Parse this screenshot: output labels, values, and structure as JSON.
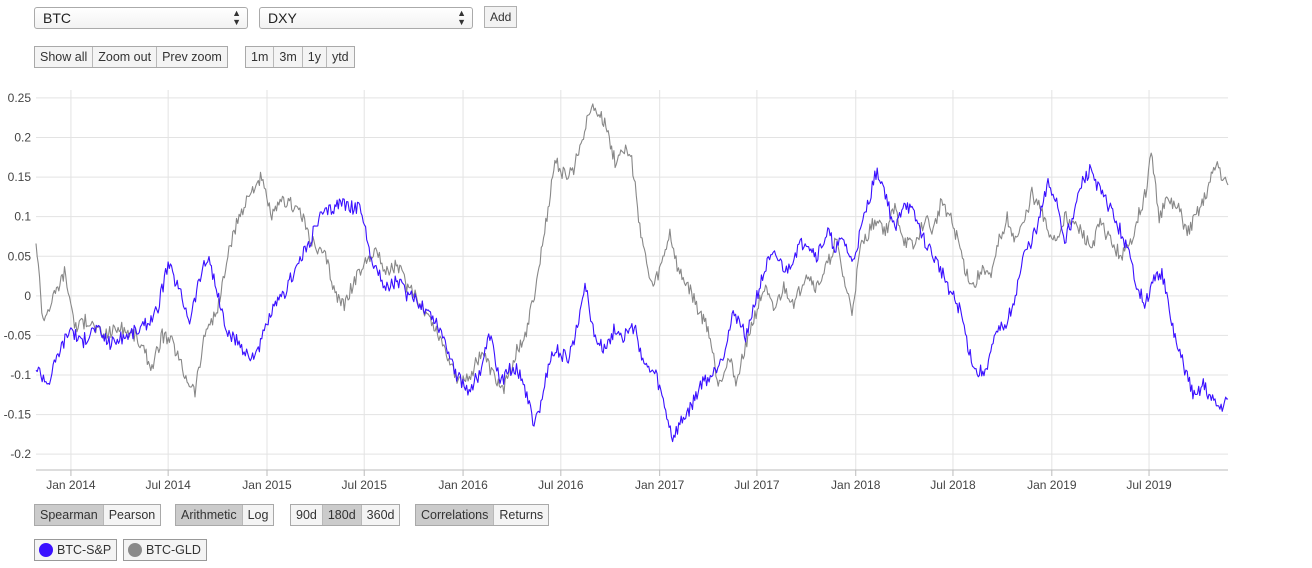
{
  "selects": {
    "asset_a": "BTC",
    "asset_b": "DXY",
    "add_label": "Add"
  },
  "zoom_controls": {
    "show_all": "Show all",
    "zoom_out": "Zoom out",
    "prev_zoom": "Prev zoom"
  },
  "range_controls": [
    "1m",
    "3m",
    "1y",
    "ytd"
  ],
  "method_controls": {
    "options": [
      "Spearman",
      "Pearson"
    ],
    "active": "Spearman"
  },
  "scale_controls": {
    "options": [
      "Arithmetic",
      "Log"
    ],
    "active": "Arithmetic"
  },
  "window_controls": {
    "options": [
      "90d",
      "180d",
      "360d"
    ],
    "active": "180d"
  },
  "view_controls": {
    "options": [
      "Correlations",
      "Returns"
    ],
    "active": "Correlations"
  },
  "legend": [
    {
      "name": "BTC-S&P",
      "color": "#3a10ff"
    },
    {
      "name": "BTC-GLD",
      "color": "#888888"
    }
  ],
  "chart_data": {
    "type": "line",
    "ylim": [
      -0.22,
      0.26
    ],
    "y_ticks": [
      -0.2,
      -0.15,
      -0.1,
      -0.05,
      0,
      0.05,
      0.1,
      0.15,
      0.2,
      0.25
    ],
    "y_tick_labels": [
      "-0.2",
      "-0.15",
      "-0.1",
      "-0.05",
      "0",
      "0.05",
      "0.1",
      "0.15",
      "0.2",
      "0.25"
    ],
    "x_range": [
      "2013-10-28",
      "2019-11-25"
    ],
    "x_ticks": [
      "2014-01-01",
      "2014-07-01",
      "2015-01-01",
      "2015-07-01",
      "2016-01-01",
      "2016-07-01",
      "2017-01-01",
      "2017-07-01",
      "2018-01-01",
      "2018-07-01",
      "2019-01-01",
      "2019-07-01"
    ],
    "x_tick_labels": [
      "Jan 2014",
      "Jul 2014",
      "Jan 2015",
      "Jul 2015",
      "Jan 2016",
      "Jul 2016",
      "Jan 2017",
      "Jul 2017",
      "Jan 2018",
      "Jul 2018",
      "Jan 2019",
      "Jul 2019"
    ],
    "grid": true,
    "series": [
      {
        "name": "BTC-S&P",
        "color": "#3a10ff",
        "points": [
          [
            "2013-10-28",
            -0.09
          ],
          [
            "2013-11-20",
            -0.11
          ],
          [
            "2013-12-10",
            -0.07
          ],
          [
            "2014-01-01",
            -0.04
          ],
          [
            "2014-01-20",
            -0.06
          ],
          [
            "2014-02-15",
            -0.04
          ],
          [
            "2014-03-15",
            -0.06
          ],
          [
            "2014-04-15",
            -0.05
          ],
          [
            "2014-05-15",
            -0.04
          ],
          [
            "2014-06-10",
            -0.02
          ],
          [
            "2014-07-01",
            0.04
          ],
          [
            "2014-07-20",
            0.01
          ],
          [
            "2014-08-10",
            -0.03
          ],
          [
            "2014-09-01",
            0.03
          ],
          [
            "2014-09-15",
            0.05
          ],
          [
            "2014-10-01",
            0.0
          ],
          [
            "2014-10-20",
            -0.05
          ],
          [
            "2014-11-10",
            -0.06
          ],
          [
            "2014-12-01",
            -0.08
          ],
          [
            "2014-12-20",
            -0.06
          ],
          [
            "2015-01-10",
            -0.02
          ],
          [
            "2015-02-01",
            0.0
          ],
          [
            "2015-02-20",
            0.03
          ],
          [
            "2015-03-15",
            0.06
          ],
          [
            "2015-04-10",
            0.1
          ],
          [
            "2015-05-01",
            0.11
          ],
          [
            "2015-05-20",
            0.12
          ],
          [
            "2015-06-10",
            0.11
          ],
          [
            "2015-06-25",
            0.11
          ],
          [
            "2015-07-10",
            0.06
          ],
          [
            "2015-07-25",
            0.03
          ],
          [
            "2015-08-10",
            0.01
          ],
          [
            "2015-09-01",
            0.02
          ],
          [
            "2015-09-20",
            0.0
          ],
          [
            "2015-10-15",
            -0.01
          ],
          [
            "2015-11-10",
            -0.03
          ],
          [
            "2015-12-01",
            -0.06
          ],
          [
            "2015-12-20",
            -0.1
          ],
          [
            "2016-01-10",
            -0.12
          ],
          [
            "2016-01-31",
            -0.1
          ],
          [
            "2016-02-20",
            -0.05
          ],
          [
            "2016-03-10",
            -0.11
          ],
          [
            "2016-04-01",
            -0.09
          ],
          [
            "2016-04-20",
            -0.1
          ],
          [
            "2016-05-10",
            -0.16
          ],
          [
            "2016-05-25",
            -0.14
          ],
          [
            "2016-06-10",
            -0.08
          ],
          [
            "2016-06-25",
            -0.07
          ],
          [
            "2016-07-15",
            -0.08
          ],
          [
            "2016-08-01",
            -0.04
          ],
          [
            "2016-08-15",
            0.02
          ],
          [
            "2016-09-01",
            -0.05
          ],
          [
            "2016-09-20",
            -0.07
          ],
          [
            "2016-10-10",
            -0.04
          ],
          [
            "2016-10-25",
            -0.05
          ],
          [
            "2016-11-15",
            -0.04
          ],
          [
            "2016-12-05",
            -0.09
          ],
          [
            "2016-12-25",
            -0.1
          ],
          [
            "2017-01-10",
            -0.14
          ],
          [
            "2017-01-25",
            -0.18
          ],
          [
            "2017-02-10",
            -0.16
          ],
          [
            "2017-03-01",
            -0.14
          ],
          [
            "2017-03-20",
            -0.11
          ],
          [
            "2017-04-10",
            -0.1
          ],
          [
            "2017-05-01",
            -0.07
          ],
          [
            "2017-05-20",
            -0.02
          ],
          [
            "2017-06-10",
            -0.05
          ],
          [
            "2017-07-01",
            0.0
          ],
          [
            "2017-07-20",
            0.04
          ],
          [
            "2017-08-05",
            0.05
          ],
          [
            "2017-08-25",
            0.03
          ],
          [
            "2017-09-15",
            0.06
          ],
          [
            "2017-10-01",
            0.07
          ],
          [
            "2017-10-20",
            0.05
          ],
          [
            "2017-11-10",
            0.08
          ],
          [
            "2017-11-25",
            0.06
          ],
          [
            "2017-12-10",
            0.07
          ],
          [
            "2017-12-25",
            0.04
          ],
          [
            "2018-01-10",
            0.08
          ],
          [
            "2018-01-25",
            0.12
          ],
          [
            "2018-02-10",
            0.16
          ],
          [
            "2018-02-25",
            0.13
          ],
          [
            "2018-03-15",
            0.08
          ],
          [
            "2018-04-01",
            0.12
          ],
          [
            "2018-04-20",
            0.1
          ],
          [
            "2018-05-10",
            0.07
          ],
          [
            "2018-05-25",
            0.05
          ],
          [
            "2018-06-10",
            0.03
          ],
          [
            "2018-06-30",
            0.0
          ],
          [
            "2018-07-15",
            -0.02
          ],
          [
            "2018-07-31",
            -0.07
          ],
          [
            "2018-08-15",
            -0.1
          ],
          [
            "2018-09-01",
            -0.09
          ],
          [
            "2018-09-20",
            -0.05
          ],
          [
            "2018-10-10",
            -0.03
          ],
          [
            "2018-10-25",
            0.0
          ],
          [
            "2018-11-10",
            0.05
          ],
          [
            "2018-11-25",
            0.07
          ],
          [
            "2018-12-10",
            0.1
          ],
          [
            "2018-12-25",
            0.14
          ],
          [
            "2019-01-10",
            0.12
          ],
          [
            "2019-01-25",
            0.07
          ],
          [
            "2019-02-10",
            0.1
          ],
          [
            "2019-02-25",
            0.14
          ],
          [
            "2019-03-15",
            0.16
          ],
          [
            "2019-04-01",
            0.13
          ],
          [
            "2019-04-20",
            0.11
          ],
          [
            "2019-05-10",
            0.08
          ],
          [
            "2019-05-25",
            0.05
          ],
          [
            "2019-06-10",
            0.01
          ],
          [
            "2019-06-25",
            -0.01
          ],
          [
            "2019-07-10",
            0.02
          ],
          [
            "2019-07-25",
            0.03
          ],
          [
            "2019-08-10",
            -0.03
          ],
          [
            "2019-08-25",
            -0.07
          ],
          [
            "2019-09-10",
            -0.1
          ],
          [
            "2019-09-25",
            -0.13
          ],
          [
            "2019-10-10",
            -0.11
          ],
          [
            "2019-10-25",
            -0.13
          ],
          [
            "2019-11-10",
            -0.14
          ],
          [
            "2019-11-25",
            -0.13
          ]
        ]
      },
      {
        "name": "BTC-GLD",
        "color": "#888888",
        "points": [
          [
            "2013-10-28",
            0.07
          ],
          [
            "2013-11-10",
            -0.03
          ],
          [
            "2013-12-01",
            0.0
          ],
          [
            "2013-12-20",
            0.03
          ],
          [
            "2014-01-10",
            -0.04
          ],
          [
            "2014-02-01",
            -0.03
          ],
          [
            "2014-03-01",
            -0.05
          ],
          [
            "2014-04-01",
            -0.04
          ],
          [
            "2014-05-01",
            -0.05
          ],
          [
            "2014-06-01",
            -0.09
          ],
          [
            "2014-06-20",
            -0.05
          ],
          [
            "2014-07-10",
            -0.06
          ],
          [
            "2014-08-01",
            -0.1
          ],
          [
            "2014-08-20",
            -0.12
          ],
          [
            "2014-09-10",
            -0.04
          ],
          [
            "2014-10-01",
            -0.02
          ],
          [
            "2014-10-20",
            0.05
          ],
          [
            "2014-11-10",
            0.1
          ],
          [
            "2014-12-01",
            0.13
          ],
          [
            "2014-12-20",
            0.15
          ],
          [
            "2015-01-10",
            0.1
          ],
          [
            "2015-02-01",
            0.12
          ],
          [
            "2015-03-01",
            0.11
          ],
          [
            "2015-04-01",
            0.06
          ],
          [
            "2015-04-20",
            0.05
          ],
          [
            "2015-05-10",
            0.0
          ],
          [
            "2015-05-25",
            -0.01
          ],
          [
            "2015-06-15",
            0.02
          ],
          [
            "2015-07-01",
            0.04
          ],
          [
            "2015-07-20",
            0.06
          ],
          [
            "2015-08-10",
            0.03
          ],
          [
            "2015-09-01",
            0.04
          ],
          [
            "2015-09-20",
            0.01
          ],
          [
            "2015-10-15",
            -0.01
          ],
          [
            "2015-11-10",
            -0.04
          ],
          [
            "2015-12-01",
            -0.07
          ],
          [
            "2015-12-25",
            -0.11
          ],
          [
            "2016-01-15",
            -0.1
          ],
          [
            "2016-02-05",
            -0.07
          ],
          [
            "2016-02-25",
            -0.1
          ],
          [
            "2016-03-15",
            -0.12
          ],
          [
            "2016-04-10",
            -0.07
          ],
          [
            "2016-04-30",
            -0.04
          ],
          [
            "2016-05-15",
            0.01
          ],
          [
            "2016-06-01",
            0.08
          ],
          [
            "2016-06-20",
            0.17
          ],
          [
            "2016-07-10",
            0.15
          ],
          [
            "2016-07-25",
            0.16
          ],
          [
            "2016-08-10",
            0.2
          ],
          [
            "2016-08-25",
            0.24
          ],
          [
            "2016-09-10",
            0.23
          ],
          [
            "2016-09-25",
            0.21
          ],
          [
            "2016-10-10",
            0.17
          ],
          [
            "2016-10-25",
            0.19
          ],
          [
            "2016-11-10",
            0.17
          ],
          [
            "2016-11-25",
            0.09
          ],
          [
            "2016-12-10",
            0.03
          ],
          [
            "2016-12-20",
            0.01
          ],
          [
            "2017-01-05",
            0.04
          ],
          [
            "2017-01-20",
            0.08
          ],
          [
            "2017-02-05",
            0.03
          ],
          [
            "2017-02-25",
            0.01
          ],
          [
            "2017-03-15",
            -0.02
          ],
          [
            "2017-04-01",
            -0.04
          ],
          [
            "2017-04-20",
            -0.11
          ],
          [
            "2017-05-10",
            -0.08
          ],
          [
            "2017-05-25",
            -0.11
          ],
          [
            "2017-06-10",
            -0.06
          ],
          [
            "2017-06-25",
            -0.03
          ],
          [
            "2017-07-15",
            0.01
          ],
          [
            "2017-08-01",
            -0.02
          ],
          [
            "2017-08-20",
            0.01
          ],
          [
            "2017-09-10",
            -0.01
          ],
          [
            "2017-10-01",
            0.03
          ],
          [
            "2017-10-20",
            0.01
          ],
          [
            "2017-11-10",
            0.04
          ],
          [
            "2017-11-25",
            0.07
          ],
          [
            "2017-12-10",
            0.02
          ],
          [
            "2017-12-25",
            -0.02
          ],
          [
            "2018-01-10",
            0.06
          ],
          [
            "2018-01-25",
            0.08
          ],
          [
            "2018-02-10",
            0.1
          ],
          [
            "2018-02-25",
            0.08
          ],
          [
            "2018-03-15",
            0.11
          ],
          [
            "2018-04-01",
            0.07
          ],
          [
            "2018-04-20",
            0.06
          ],
          [
            "2018-05-10",
            0.1
          ],
          [
            "2018-05-25",
            0.08
          ],
          [
            "2018-06-10",
            0.12
          ],
          [
            "2018-06-25",
            0.1
          ],
          [
            "2018-07-10",
            0.07
          ],
          [
            "2018-07-25",
            0.03
          ],
          [
            "2018-08-10",
            0.01
          ],
          [
            "2018-08-25",
            0.04
          ],
          [
            "2018-09-10",
            0.02
          ],
          [
            "2018-09-25",
            0.07
          ],
          [
            "2018-10-10",
            0.1
          ],
          [
            "2018-10-25",
            0.07
          ],
          [
            "2018-11-10",
            0.09
          ],
          [
            "2018-11-25",
            0.13
          ],
          [
            "2018-12-10",
            0.11
          ],
          [
            "2018-12-25",
            0.08
          ],
          [
            "2019-01-10",
            0.07
          ],
          [
            "2019-01-25",
            0.1
          ],
          [
            "2019-02-10",
            0.09
          ],
          [
            "2019-02-25",
            0.08
          ],
          [
            "2019-03-15",
            0.06
          ],
          [
            "2019-04-01",
            0.09
          ],
          [
            "2019-04-20",
            0.07
          ],
          [
            "2019-05-10",
            0.05
          ],
          [
            "2019-05-25",
            0.06
          ],
          [
            "2019-06-10",
            0.1
          ],
          [
            "2019-06-25",
            0.13
          ],
          [
            "2019-07-05",
            0.18
          ],
          [
            "2019-07-20",
            0.1
          ],
          [
            "2019-08-05",
            0.12
          ],
          [
            "2019-08-25",
            0.11
          ],
          [
            "2019-09-10",
            0.08
          ],
          [
            "2019-09-25",
            0.1
          ],
          [
            "2019-10-10",
            0.12
          ],
          [
            "2019-10-25",
            0.15
          ],
          [
            "2019-11-05",
            0.17
          ],
          [
            "2019-11-15",
            0.15
          ],
          [
            "2019-11-25",
            0.14
          ]
        ]
      }
    ]
  }
}
